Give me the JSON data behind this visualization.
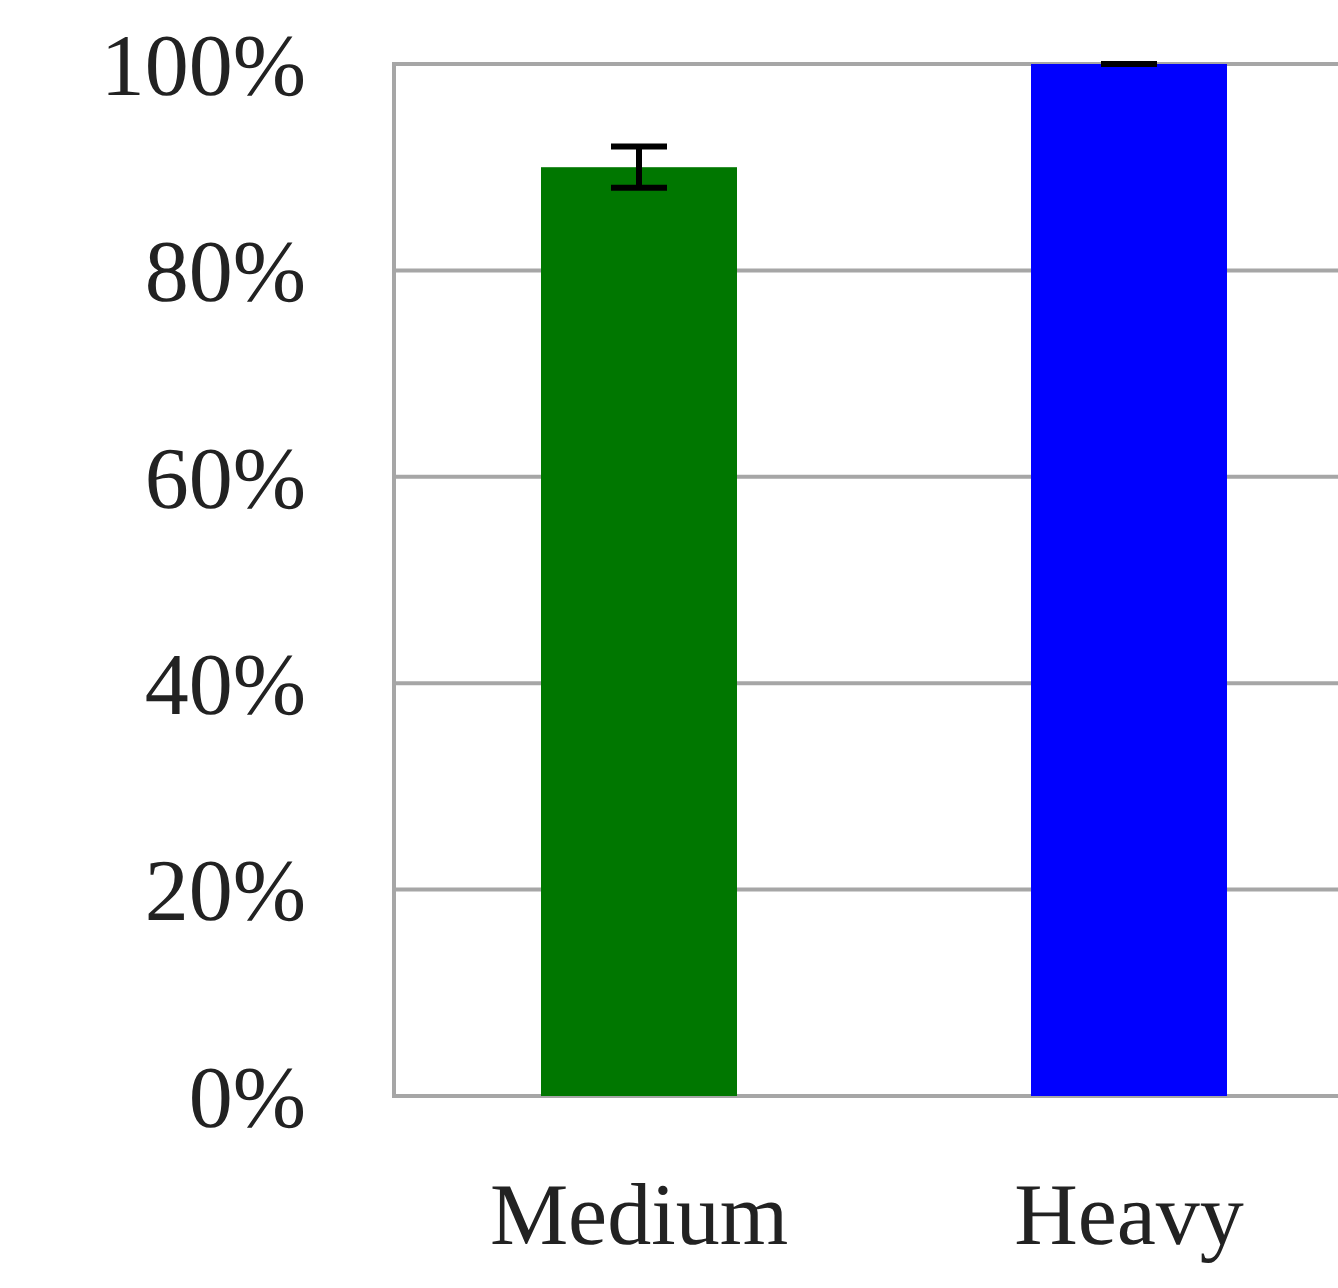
{
  "chart_data": {
    "type": "bar",
    "categories": [
      "Medium",
      "Heavy"
    ],
    "colors": [
      "#007700",
      "#0000ff"
    ],
    "values": [
      90,
      100
    ],
    "errors": [
      2,
      0
    ],
    "ylim": [
      0,
      100
    ],
    "yticks": [
      {
        "value": 0,
        "label": "0%"
      },
      {
        "value": 20,
        "label": "20%"
      },
      {
        "value": 40,
        "label": "40%"
      },
      {
        "value": 60,
        "label": "60%"
      },
      {
        "value": 80,
        "label": "80%"
      },
      {
        "value": 100,
        "label": "100%"
      }
    ],
    "grid": "y"
  }
}
